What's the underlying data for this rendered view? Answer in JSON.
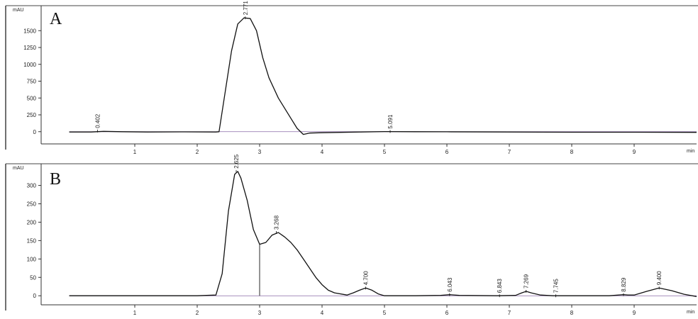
{
  "chart_data": [
    {
      "type": "line",
      "panel_label": "A",
      "ylabel": "mAU",
      "xlabel": "min",
      "xlim": [
        -0.5,
        10.0
      ],
      "ylim": [
        -150,
        1850
      ],
      "x_ticks": [
        1,
        2,
        3,
        4,
        5,
        6,
        7,
        8,
        9
      ],
      "y_ticks": [
        0,
        250,
        500,
        750,
        1000,
        1250,
        1500
      ],
      "peaks": [
        {
          "label": "0.402",
          "rt": 0.402,
          "height": 10
        },
        {
          "label": "2.771",
          "rt": 2.771,
          "height": 1690
        },
        {
          "label": "5.091",
          "rt": 5.091,
          "height": 2
        }
      ],
      "series": [
        {
          "x": [
            -0.05,
            0.3,
            0.5,
            0.8,
            1.2,
            1.8,
            2.3,
            2.35,
            2.45,
            2.55,
            2.65,
            2.75,
            2.85,
            2.95,
            3.05,
            3.15,
            3.3,
            3.5,
            3.6,
            3.7,
            3.8,
            4.0,
            4.3,
            4.6,
            5.0,
            5.5,
            6.0,
            7.0,
            8.0,
            9.0,
            10.0
          ],
          "y": [
            -5,
            -5,
            5,
            0,
            -5,
            -3,
            -5,
            0,
            600,
            1200,
            1600,
            1690,
            1680,
            1500,
            1100,
            800,
            500,
            200,
            50,
            -40,
            -20,
            -15,
            -10,
            -5,
            2,
            0,
            -2,
            -5,
            -8,
            -8,
            -10
          ]
        }
      ],
      "grid": false
    },
    {
      "type": "line",
      "panel_label": "B",
      "ylabel": "mAU",
      "xlabel": "min",
      "xlim": [
        -0.5,
        10.0
      ],
      "ylim": [
        -15,
        355
      ],
      "x_ticks": [
        1,
        2,
        3,
        4,
        5,
        6,
        7,
        8,
        9
      ],
      "y_ticks": [
        0,
        50,
        100,
        150,
        200,
        250,
        300
      ],
      "peaks": [
        {
          "label": "2.625",
          "rt": 2.625,
          "height": 338
        },
        {
          "label": "3.268",
          "rt": 3.268,
          "height": 172
        },
        {
          "label": "4.700",
          "rt": 4.7,
          "height": 21
        },
        {
          "label": "6.043",
          "rt": 6.043,
          "height": 3
        },
        {
          "label": "6.843",
          "rt": 6.843,
          "height": 0
        },
        {
          "label": "7.269",
          "rt": 7.269,
          "height": 12
        },
        {
          "label": "7.745",
          "rt": 7.745,
          "height": 0
        },
        {
          "label": "8.829",
          "rt": 8.829,
          "height": 3
        },
        {
          "label": "9.400",
          "rt": 9.4,
          "height": 21
        }
      ],
      "series": [
        {
          "x": [
            -0.05,
            1.0,
            2.0,
            2.3,
            2.4,
            2.5,
            2.6,
            2.65,
            2.7,
            2.8,
            2.9,
            3.0,
            3.1,
            3.2,
            3.3,
            3.4,
            3.5,
            3.6,
            3.7,
            3.8,
            3.9,
            4.0,
            4.1,
            4.2,
            4.4,
            4.5,
            4.6,
            4.7,
            4.8,
            4.9,
            5.0,
            5.5,
            5.9,
            6.05,
            6.2,
            6.8,
            7.1,
            7.2,
            7.27,
            7.35,
            7.5,
            7.7,
            7.9,
            8.6,
            8.75,
            8.83,
            8.9,
            9.0,
            9.2,
            9.4,
            9.6,
            9.8,
            10.0
          ],
          "y": [
            0,
            0,
            0,
            2,
            60,
            230,
            330,
            338,
            320,
            260,
            180,
            140,
            145,
            165,
            172,
            160,
            145,
            125,
            100,
            75,
            50,
            30,
            15,
            8,
            2,
            8,
            15,
            21,
            15,
            5,
            0,
            0,
            1,
            3,
            1,
            0,
            1,
            8,
            12,
            8,
            2,
            0,
            0,
            0,
            2,
            3,
            2,
            2,
            12,
            21,
            14,
            4,
            -2
          ]
        }
      ],
      "grid": false
    }
  ]
}
